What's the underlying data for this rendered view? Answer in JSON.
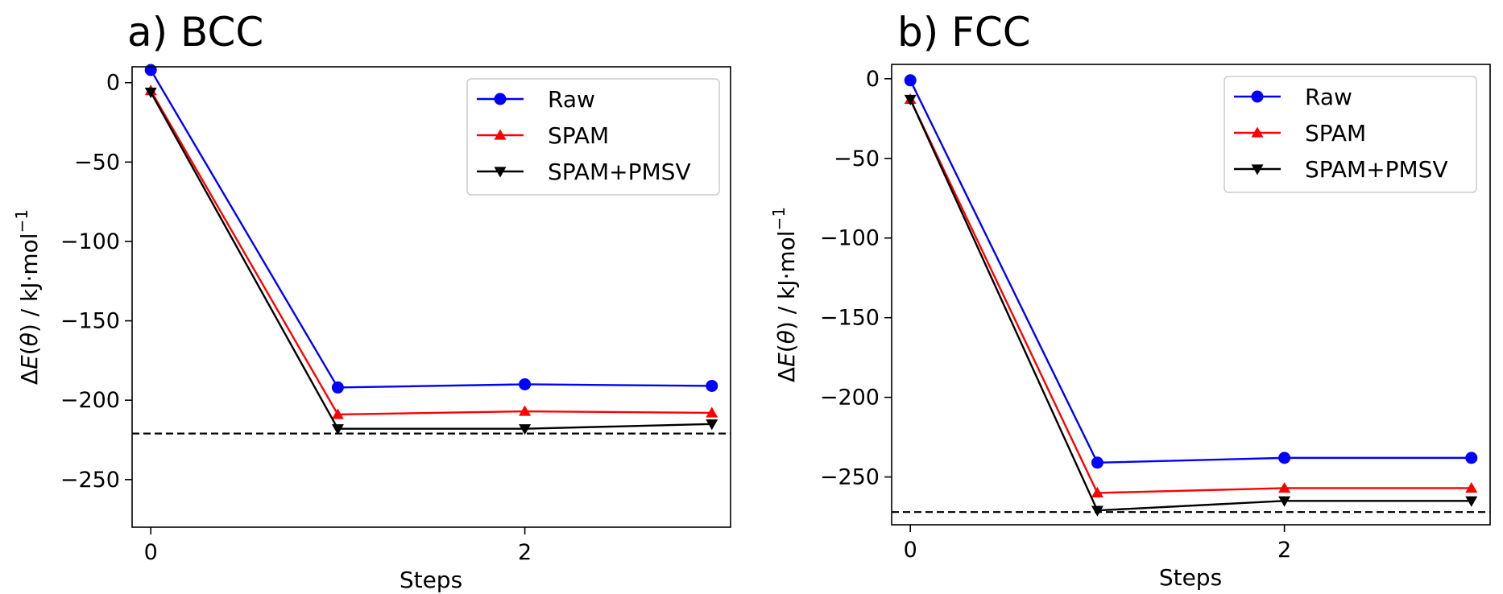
{
  "chart_data": [
    {
      "type": "line",
      "panel": "a",
      "title": "a) BCC",
      "xlabel": "Steps",
      "ylabel_parts": {
        "delta": "Δ",
        "e": "E",
        "open": "(",
        "theta": "θ",
        "close": ")",
        "unit": " / kJ·mol",
        "sup": "−1"
      },
      "x": [
        0,
        1,
        2,
        3
      ],
      "xticks": [
        0,
        2
      ],
      "xtick_labels": [
        "0",
        "2"
      ],
      "yticks": [
        0,
        -50,
        -100,
        -150,
        -200,
        -250
      ],
      "ytick_labels": [
        "0",
        "−50",
        "−100",
        "−150",
        "−200",
        "−250"
      ],
      "xlim": [
        -0.1,
        3.1
      ],
      "ylim": [
        -280,
        10
      ],
      "reference_line": {
        "value": -221,
        "style": "dashed",
        "color": "#000000"
      },
      "legend_position": "upper-right",
      "series": [
        {
          "name": "Raw",
          "color": "#0000ff",
          "marker": "circle",
          "values": [
            8,
            -192,
            -190,
            -191
          ]
        },
        {
          "name": "SPAM",
          "color": "#ff0000",
          "marker": "triangle-up",
          "values": [
            -5,
            -209,
            -207,
            -208
          ]
        },
        {
          "name": "SPAM+PMSV",
          "color": "#000000",
          "marker": "triangle-down",
          "values": [
            -6,
            -218,
            -218,
            -215
          ]
        }
      ]
    },
    {
      "type": "line",
      "panel": "b",
      "title": "b) FCC",
      "xlabel": "Steps",
      "ylabel_parts": {
        "delta": "Δ",
        "e": "E",
        "open": "(",
        "theta": "θ",
        "close": ")",
        "unit": " / kJ·mol",
        "sup": "−1"
      },
      "x": [
        0,
        1,
        2,
        3
      ],
      "xticks": [
        0,
        2
      ],
      "xtick_labels": [
        "0",
        "2"
      ],
      "yticks": [
        0,
        -50,
        -100,
        -150,
        -200,
        -250
      ],
      "ytick_labels": [
        "0",
        "−50",
        "−100",
        "−150",
        "−200",
        "−250"
      ],
      "xlim": [
        -0.1,
        3.1
      ],
      "ylim": [
        -280,
        9
      ],
      "reference_line": {
        "value": -272,
        "style": "dashed",
        "color": "#000000"
      },
      "legend_position": "upper-right",
      "series": [
        {
          "name": "Raw",
          "color": "#0000ff",
          "marker": "circle",
          "values": [
            -1,
            -241,
            -238,
            -238
          ]
        },
        {
          "name": "SPAM",
          "color": "#ff0000",
          "marker": "triangle-up",
          "values": [
            -13,
            -260,
            -257,
            -257
          ]
        },
        {
          "name": "SPAM+PMSV",
          "color": "#000000",
          "marker": "triangle-down",
          "values": [
            -13,
            -271,
            -265,
            -265
          ]
        }
      ]
    }
  ]
}
